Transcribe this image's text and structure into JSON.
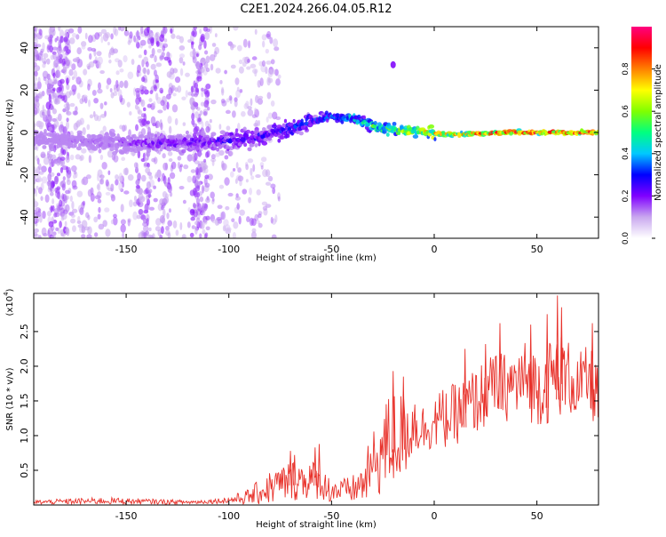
{
  "title": "C2E1.2024.266.04.05.R12",
  "chart_data": [
    {
      "type": "heatmap",
      "xlabel": "Height of straight line (km)",
      "ylabel": "Frequency (Hz)",
      "xlim": [
        -195,
        80
      ],
      "ylim": [
        -50,
        50
      ],
      "xticks": [
        -150,
        -100,
        -50,
        0,
        50
      ],
      "yticks": [
        -40,
        -20,
        0,
        20,
        40
      ],
      "colorbar": {
        "label": "Normalized spectral amplitude",
        "range": [
          0,
          1
        ],
        "ticks": [
          "0.0",
          "0.2",
          "0.4",
          "0.6",
          "0.8"
        ],
        "colormap": [
          "#ffffff",
          "#c9a8ef",
          "#8000ff",
          "#0000ff",
          "#00c8ff",
          "#00ff80",
          "#80ff00",
          "#ffff00",
          "#ff8000",
          "#ff0000",
          "#ff0080"
        ]
      },
      "ridge": {
        "x": [
          -195,
          -175,
          -150,
          -125,
          -110,
          -100,
          -90,
          -80,
          -70,
          -60,
          -50,
          -45,
          -40,
          -35,
          -30,
          -25,
          -20,
          -15,
          -10,
          -5,
          0,
          10,
          20,
          30,
          40,
          50,
          60,
          70,
          80
        ],
        "frequency": [
          -3,
          -4,
          -5,
          -5,
          -4,
          -4,
          -3,
          -1,
          2,
          5,
          8,
          6,
          7,
          5,
          3,
          2,
          1,
          0.5,
          0.5,
          0,
          -0.5,
          -1,
          -0.5,
          0,
          0,
          0,
          0,
          0,
          0
        ],
        "amplitude": [
          0.1,
          0.15,
          0.2,
          0.25,
          0.25,
          0.3,
          0.3,
          0.3,
          0.35,
          0.35,
          0.4,
          0.45,
          0.5,
          0.55,
          0.6,
          0.6,
          0.65,
          0.7,
          0.75,
          0.75,
          0.8,
          0.8,
          0.85,
          0.9,
          0.9,
          0.95,
          0.95,
          0.95,
          0.9
        ]
      },
      "isolated_feature": {
        "x": -20,
        "frequency": 32
      }
    },
    {
      "type": "line",
      "xlabel": "Height of straight line (km)",
      "ylabel": "SNR (10 * v/v)",
      "y_multiplier_label": "(x10",
      "y_multiplier_exponent": "4",
      "y_multiplier_close": ")",
      "xlim": [
        -195,
        80
      ],
      "ylim": [
        0,
        3.05
      ],
      "xticks": [
        -150,
        -100,
        -50,
        0,
        50
      ],
      "yticks": [
        0.5,
        1.0,
        1.5,
        2.0,
        2.5
      ],
      "yticklabels": [
        "0.5",
        "1.0",
        "1.5",
        "2.0",
        "2.5"
      ],
      "series": [
        {
          "color": "#e8312a",
          "envelope_x": [
            -195,
            -180,
            -160,
            -140,
            -120,
            -110,
            -100,
            -90,
            -80,
            -70,
            -60,
            -55,
            -50,
            -45,
            -40,
            -35,
            -30,
            -25,
            -20,
            -15,
            -10,
            -5,
            0,
            5,
            10,
            15,
            20,
            25,
            30,
            35,
            40,
            45,
            50,
            55,
            60,
            65,
            70,
            75,
            80
          ],
          "envelope_mean": [
            0.04,
            0.05,
            0.06,
            0.05,
            0.04,
            0.05,
            0.07,
            0.12,
            0.25,
            0.35,
            0.38,
            0.3,
            0.22,
            0.2,
            0.22,
            0.3,
            0.55,
            0.8,
            0.95,
            1.0,
            1.2,
            1.1,
            1.2,
            1.25,
            1.3,
            1.4,
            1.5,
            1.6,
            1.75,
            1.7,
            1.75,
            1.8,
            1.7,
            1.75,
            1.9,
            1.85,
            1.7,
            1.8,
            1.6
          ],
          "envelope_amp": [
            0.03,
            0.04,
            0.05,
            0.04,
            0.03,
            0.03,
            0.05,
            0.12,
            0.25,
            0.3,
            0.3,
            0.22,
            0.2,
            0.18,
            0.2,
            0.3,
            0.5,
            0.65,
            0.75,
            0.65,
            0.5,
            0.35,
            0.4,
            0.45,
            0.45,
            0.45,
            0.5,
            0.5,
            0.45,
            0.5,
            0.55,
            0.6,
            0.55,
            0.6,
            0.65,
            0.55,
            0.5,
            0.5,
            0.55
          ],
          "peaks": [
            {
              "x": -70,
              "value": 0.78
            },
            {
              "x": -68,
              "value": 0.72
            },
            {
              "x": -58,
              "value": 0.83
            },
            {
              "x": -56,
              "value": 0.88
            },
            {
              "x": -20,
              "value": 1.93
            },
            {
              "x": -15,
              "value": 1.85
            },
            {
              "x": 15,
              "value": 2.25
            },
            {
              "x": 25,
              "value": 2.32
            },
            {
              "x": 32,
              "value": 2.62
            },
            {
              "x": 47,
              "value": 2.6
            },
            {
              "x": 55,
              "value": 2.75
            },
            {
              "x": 60,
              "value": 3.02
            },
            {
              "x": 62,
              "value": 2.85
            },
            {
              "x": 77,
              "value": 2.62
            }
          ]
        }
      ]
    }
  ]
}
